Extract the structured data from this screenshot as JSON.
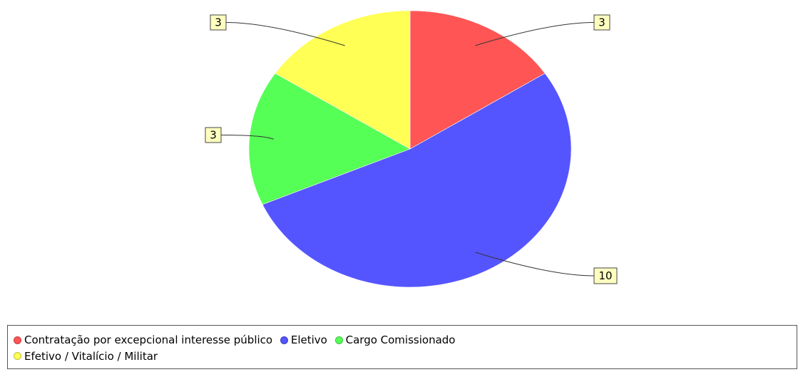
{
  "chart_data": {
    "type": "pie",
    "categories": [
      "Contratação por excepcional interesse público",
      "Eletivo",
      "Cargo Comissionado",
      "Efetivo / Vitalício / Militar"
    ],
    "values": [
      3,
      10,
      3,
      3
    ],
    "colors": [
      "#ff5555",
      "#5555ff",
      "#55ff55",
      "#ffff55"
    ],
    "data_labels": [
      "3",
      "10",
      "3",
      "3"
    ],
    "start_angle_deg": 90,
    "direction": "clockwise",
    "legend_position": "bottom"
  },
  "legend": {
    "items": [
      {
        "label": "Contratação por excepcional interesse público",
        "color": "#ff5555"
      },
      {
        "label": "Eletivo",
        "color": "#5555ff"
      },
      {
        "label": "Cargo Comissionado",
        "color": "#55ff55"
      },
      {
        "label": "Efetivo / Vitalício / Militar",
        "color": "#ffff55"
      }
    ]
  }
}
